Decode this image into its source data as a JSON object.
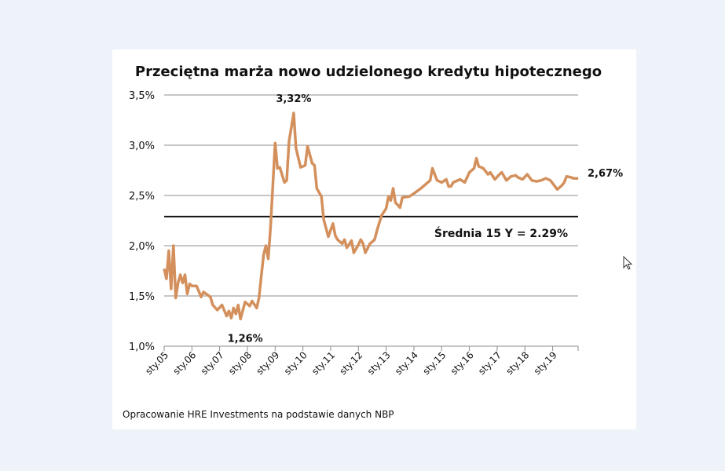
{
  "chart_data": {
    "type": "line",
    "title": "Przeciętna marża nowo udzielonego kredytu hipotecznego",
    "xlabel": "",
    "ylabel": "",
    "ylim": [
      1.0,
      3.5
    ],
    "yticks": [
      1.0,
      1.5,
      2.0,
      2.5,
      3.0,
      3.5
    ],
    "ytick_labels": [
      "1,0%",
      "1,5%",
      "2,0%",
      "2,5%",
      "3,0%",
      "3,5%"
    ],
    "xtick_labels": [
      "sty.05",
      "sty.06",
      "sty.07",
      "sty.08",
      "sty.09",
      "sty.10",
      "sty.11",
      "sty.12",
      "sty.13",
      "sty.14",
      "sty.15",
      "sty.16",
      "sty.17",
      "sty.18",
      "sty.19"
    ],
    "xlim": [
      "2005-01",
      "2019-12"
    ],
    "grid": true,
    "line_color": "#d4905c",
    "series": [
      {
        "x": [
          "2005-01",
          "2005-02",
          "2005-03",
          "2005-04",
          "2005-05",
          "2005-06",
          "2005-07",
          "2005-08",
          "2005-09",
          "2005-10",
          "2005-11",
          "2005-12",
          "2006-01",
          "2006-03",
          "2006-05",
          "2006-06",
          "2006-09",
          "2006-10",
          "2006-12",
          "2007-02",
          "2007-04",
          "2007-05",
          "2007-06",
          "2007-07",
          "2007-08",
          "2007-09",
          "2007-10",
          "2007-12",
          "2008-02",
          "2008-03",
          "2008-05",
          "2008-06",
          "2008-08",
          "2008-09",
          "2008-10",
          "2008-11",
          "2009-01",
          "2009-02",
          "2009-03",
          "2009-05",
          "2009-06",
          "2009-07",
          "2009-09",
          "2009-10",
          "2009-12",
          "2010-02",
          "2010-03",
          "2010-05",
          "2010-06",
          "2010-07",
          "2010-09",
          "2010-10",
          "2010-12",
          "2011-02",
          "2011-03",
          "2011-04",
          "2011-06",
          "2011-07",
          "2011-08",
          "2011-10",
          "2011-11",
          "2012-01",
          "2012-02",
          "2012-03",
          "2012-04",
          "2012-06",
          "2012-08",
          "2012-09",
          "2012-11",
          "2013-01",
          "2013-02",
          "2013-03",
          "2013-04",
          "2013-05",
          "2013-07",
          "2013-08",
          "2013-11",
          "2014-01",
          "2014-04",
          "2014-06",
          "2014-08",
          "2014-09",
          "2014-11",
          "2015-01",
          "2015-03",
          "2015-04",
          "2015-05",
          "2015-06",
          "2015-09",
          "2015-11",
          "2016-01",
          "2016-03",
          "2016-04",
          "2016-05",
          "2016-07",
          "2016-09",
          "2016-10",
          "2016-12",
          "2017-02",
          "2017-03",
          "2017-05",
          "2017-07",
          "2017-09",
          "2017-10",
          "2017-12",
          "2018-02",
          "2018-04",
          "2018-06",
          "2018-08",
          "2018-10",
          "2018-12",
          "2019-02",
          "2019-03",
          "2019-05",
          "2019-06",
          "2019-07",
          "2019-09",
          "2019-10",
          "2019-12"
        ],
        "values": [
          1.77,
          1.67,
          1.95,
          1.57,
          2.0,
          1.48,
          1.63,
          1.71,
          1.63,
          1.71,
          1.52,
          1.62,
          1.6,
          1.6,
          1.49,
          1.54,
          1.49,
          1.41,
          1.36,
          1.41,
          1.3,
          1.35,
          1.28,
          1.38,
          1.32,
          1.41,
          1.27,
          1.44,
          1.4,
          1.45,
          1.38,
          1.48,
          1.91,
          2.0,
          1.87,
          2.18,
          3.02,
          2.77,
          2.78,
          2.63,
          2.65,
          3.04,
          3.32,
          2.97,
          2.78,
          2.8,
          2.99,
          2.82,
          2.8,
          2.57,
          2.49,
          2.26,
          2.09,
          2.22,
          2.1,
          2.06,
          2.02,
          2.06,
          1.98,
          2.05,
          1.93,
          2.01,
          2.06,
          2.02,
          1.93,
          2.02,
          2.06,
          2.15,
          2.3,
          2.37,
          2.49,
          2.45,
          2.57,
          2.43,
          2.38,
          2.48,
          2.49,
          2.52,
          2.57,
          2.61,
          2.65,
          2.77,
          2.65,
          2.63,
          2.66,
          2.59,
          2.59,
          2.63,
          2.66,
          2.63,
          2.73,
          2.77,
          2.87,
          2.79,
          2.77,
          2.71,
          2.73,
          2.66,
          2.71,
          2.73,
          2.65,
          2.69,
          2.7,
          2.68,
          2.66,
          2.71,
          2.65,
          2.64,
          2.65,
          2.67,
          2.65,
          2.59,
          2.56,
          2.6,
          2.63,
          2.69,
          2.68,
          2.67,
          2.67
        ]
      }
    ],
    "reference_line": {
      "value": 2.29,
      "label": "Średnia 15 Y = 2.29%"
    },
    "annotations": [
      {
        "text": "3,32%",
        "x": "2009-09",
        "y": 3.32
      },
      {
        "text": "1,26%",
        "x": "2007-10",
        "y": 1.26
      },
      {
        "text": "2,67%",
        "x": "2019-12",
        "y": 2.67
      }
    ],
    "source": "Opracowanie HRE Investments na podstawie danych NBP"
  }
}
